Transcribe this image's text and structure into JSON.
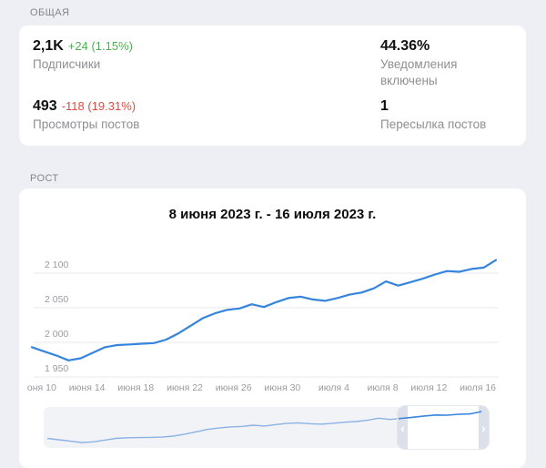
{
  "colors": {
    "accent_line": "#3584de",
    "mini_line": "#8cb2e4",
    "positive": "#4fb053",
    "negative": "#df4b40",
    "page_background": "#edeff4",
    "card_background": "#ffffff"
  },
  "sections": {
    "general": {
      "header": "ОБЩАЯ",
      "stats": {
        "subscribers": {
          "value": "2,1K",
          "delta": "+24 (1.15%)",
          "label": "Подписчики"
        },
        "views": {
          "value": "493",
          "delta": "-118 (19.31%)",
          "label": "Просмотры постов"
        },
        "notifications": {
          "value": "44.36%",
          "label": "Уведомления включены"
        },
        "forwards": {
          "value": "1",
          "label": "Пересылка постов"
        }
      }
    },
    "growth": {
      "header": "РОСТ",
      "chart_title": "8 июня 2023 г. - 16 июля 2023 г."
    }
  },
  "chart_data": {
    "type": "line",
    "title": "8 июня 2023 г. - 16 июля 2023 г.",
    "series": [
      {
        "name": "Подписчики",
        "x_start": "8 июня 2023",
        "x_end": "16 июля 2023",
        "values": [
          1993,
          1987,
          1981,
          1974,
          1977,
          1985,
          1993,
          1996,
          1997,
          1998,
          1999,
          2004,
          2013,
          2024,
          2035,
          2042,
          2047,
          2049,
          2055,
          2051,
          2058,
          2064,
          2066,
          2062,
          2060,
          2064,
          2069,
          2072,
          2078,
          2088,
          2082,
          2087,
          2092,
          2098,
          2103,
          2102,
          2106,
          2108,
          2119
        ]
      }
    ],
    "y_ticks": [
      2100,
      2050,
      2000,
      1950
    ],
    "y_tick_labels": [
      "2 100",
      "2 050",
      "2 000",
      "1 950"
    ],
    "x_tick_labels": [
      "оня 10",
      "июня 14",
      "июня 18",
      "июня 22",
      "июня 26",
      "июня 30",
      "июля 4",
      "июля 8",
      "июля 12",
      "июля 16"
    ],
    "x_tick_day_indices": [
      2,
      6,
      10,
      14,
      18,
      22,
      26,
      30,
      34,
      38
    ],
    "ylim": [
      1945,
      2125
    ],
    "grid": true,
    "legend": "none",
    "minimap": {
      "selection_start": 0.8,
      "selection_end": 1.01
    }
  }
}
